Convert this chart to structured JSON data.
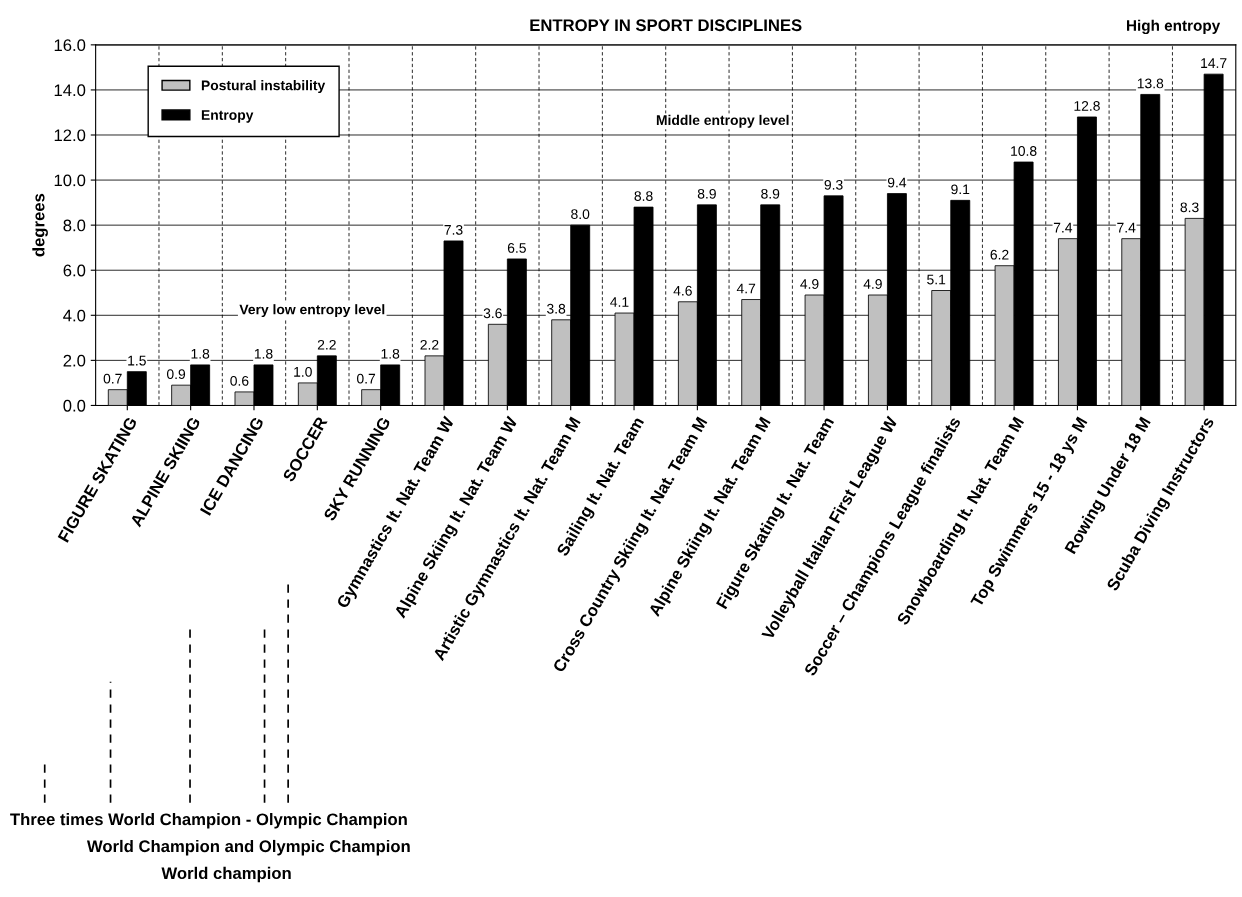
{
  "chart_data": {
    "type": "bar",
    "title": "ENTROPY IN SPORT DISCIPLINES",
    "ylabel": "degrees",
    "categories": [
      "FIGURE SKATING",
      "ALPINE SKIING",
      "ICE DANCING",
      "SOCCER",
      "SKY RUNNING",
      "Gymnastics It. Nat. Team W",
      "Alpine Skiing It. Nat. Team W",
      "Artistic Gymnastics It. Nat. Team M",
      "Sailing It. Nat. Team",
      "Cross Country Skiing It. Nat. Team M",
      "Alpine Skiing It. Nat. Team M",
      "Figure Skating It. Nat. Team",
      "Volleyball Italian First League W",
      "Soccer – Champions League finalists",
      "Snowboarding It. Nat. Team M",
      "Top Swimmers 15 - 18 ys M",
      "Rowing Under 18 M",
      "Scuba Diving Instructors"
    ],
    "series": [
      {
        "name": "Postural instability",
        "color": "#c0c0c0",
        "values": [
          0.7,
          0.9,
          0.6,
          1.0,
          0.7,
          2.2,
          3.6,
          3.8,
          4.1,
          4.6,
          4.7,
          4.9,
          4.9,
          5.1,
          6.2,
          7.4,
          7.4,
          8.3
        ],
        "value_labels": [
          "0.7",
          "0.9",
          "0.6",
          "1.0",
          "0.7",
          "2.2",
          "3.6",
          "3.8",
          "4.1",
          "4.6",
          "4.7",
          "4.9",
          "4.9",
          "5.1",
          "6.2",
          "7.4",
          "7.4",
          "8.3"
        ]
      },
      {
        "name": "Entropy",
        "color": "#000000",
        "values": [
          1.5,
          1.8,
          1.8,
          2.2,
          1.8,
          7.3,
          6.5,
          8.0,
          8.8,
          8.9,
          8.9,
          9.3,
          9.4,
          9.1,
          10.8,
          12.8,
          13.8,
          14.7
        ],
        "value_labels": [
          "1.5",
          "1.8",
          "1.8",
          "2.2",
          "1.8",
          "7.3",
          "6.5",
          "8.0",
          "8.8",
          "8.9",
          "8.9",
          "9.3",
          "9.4",
          "9.1",
          "10.8",
          "12.8",
          "13.8",
          "14.7"
        ]
      }
    ],
    "ylim": [
      0,
      16
    ],
    "yticks": [
      {
        "value": 0,
        "label": "0.0"
      },
      {
        "value": 2,
        "label": "2.0"
      },
      {
        "value": 4,
        "label": "4.0"
      },
      {
        "value": 6,
        "label": "6.0"
      },
      {
        "value": 8,
        "label": "8.0"
      },
      {
        "value": 10,
        "label": "10.0"
      },
      {
        "value": 12,
        "label": "12.0"
      },
      {
        "value": 14,
        "label": "14.0"
      },
      {
        "value": 16,
        "label": "16.0"
      }
    ],
    "grid": "y",
    "legend": "top left",
    "annotations": [
      "High entropy",
      "Middle entropy level",
      "Very low entropy level",
      "Three times World Champion - Olympic Champion",
      "World Champion and Olympic Champion",
      "World champion"
    ]
  }
}
